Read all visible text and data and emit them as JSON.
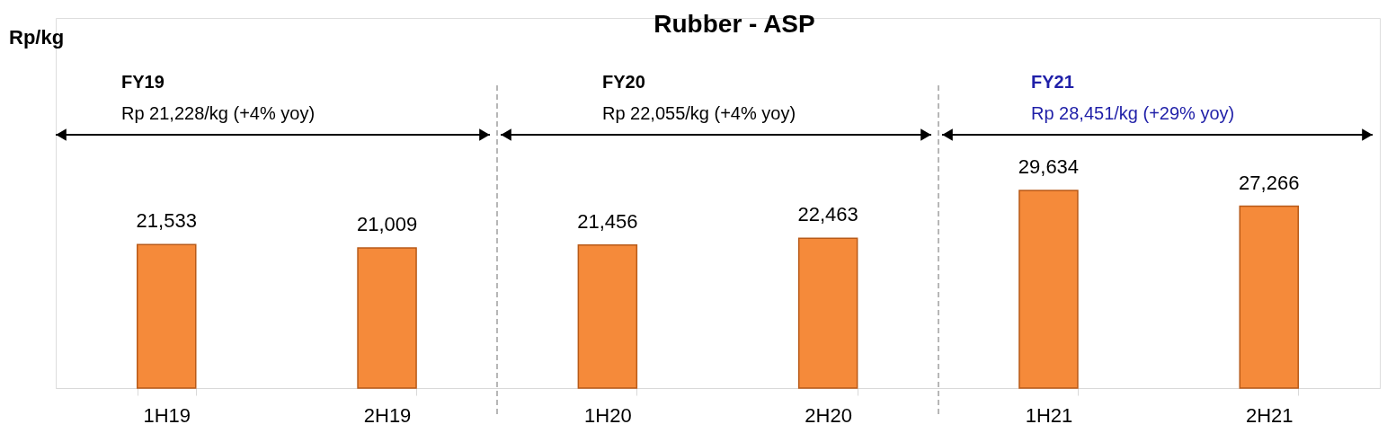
{
  "chart_data": {
    "type": "bar",
    "title": "Rubber - ASP",
    "categories": [
      "1H19",
      "2H19",
      "1H20",
      "2H20",
      "1H21",
      "2H21"
    ],
    "values": [
      21533,
      21009,
      21456,
      22463,
      29634,
      27266
    ],
    "value_labels": [
      "21,533",
      "21,009",
      "21,456",
      "22,463",
      "29,634",
      "27,266"
    ],
    "color": "#f58a3a",
    "grid": false,
    "annotations": [
      "Rp/kg",
      "FY19",
      "Rp 21,228/kg  (+4% yoy)",
      "FY20",
      "Rp 22,055/kg  (+4% yoy)",
      "FY21",
      "Rp 28,451/kg  (+29% yoy)"
    ]
  }
}
